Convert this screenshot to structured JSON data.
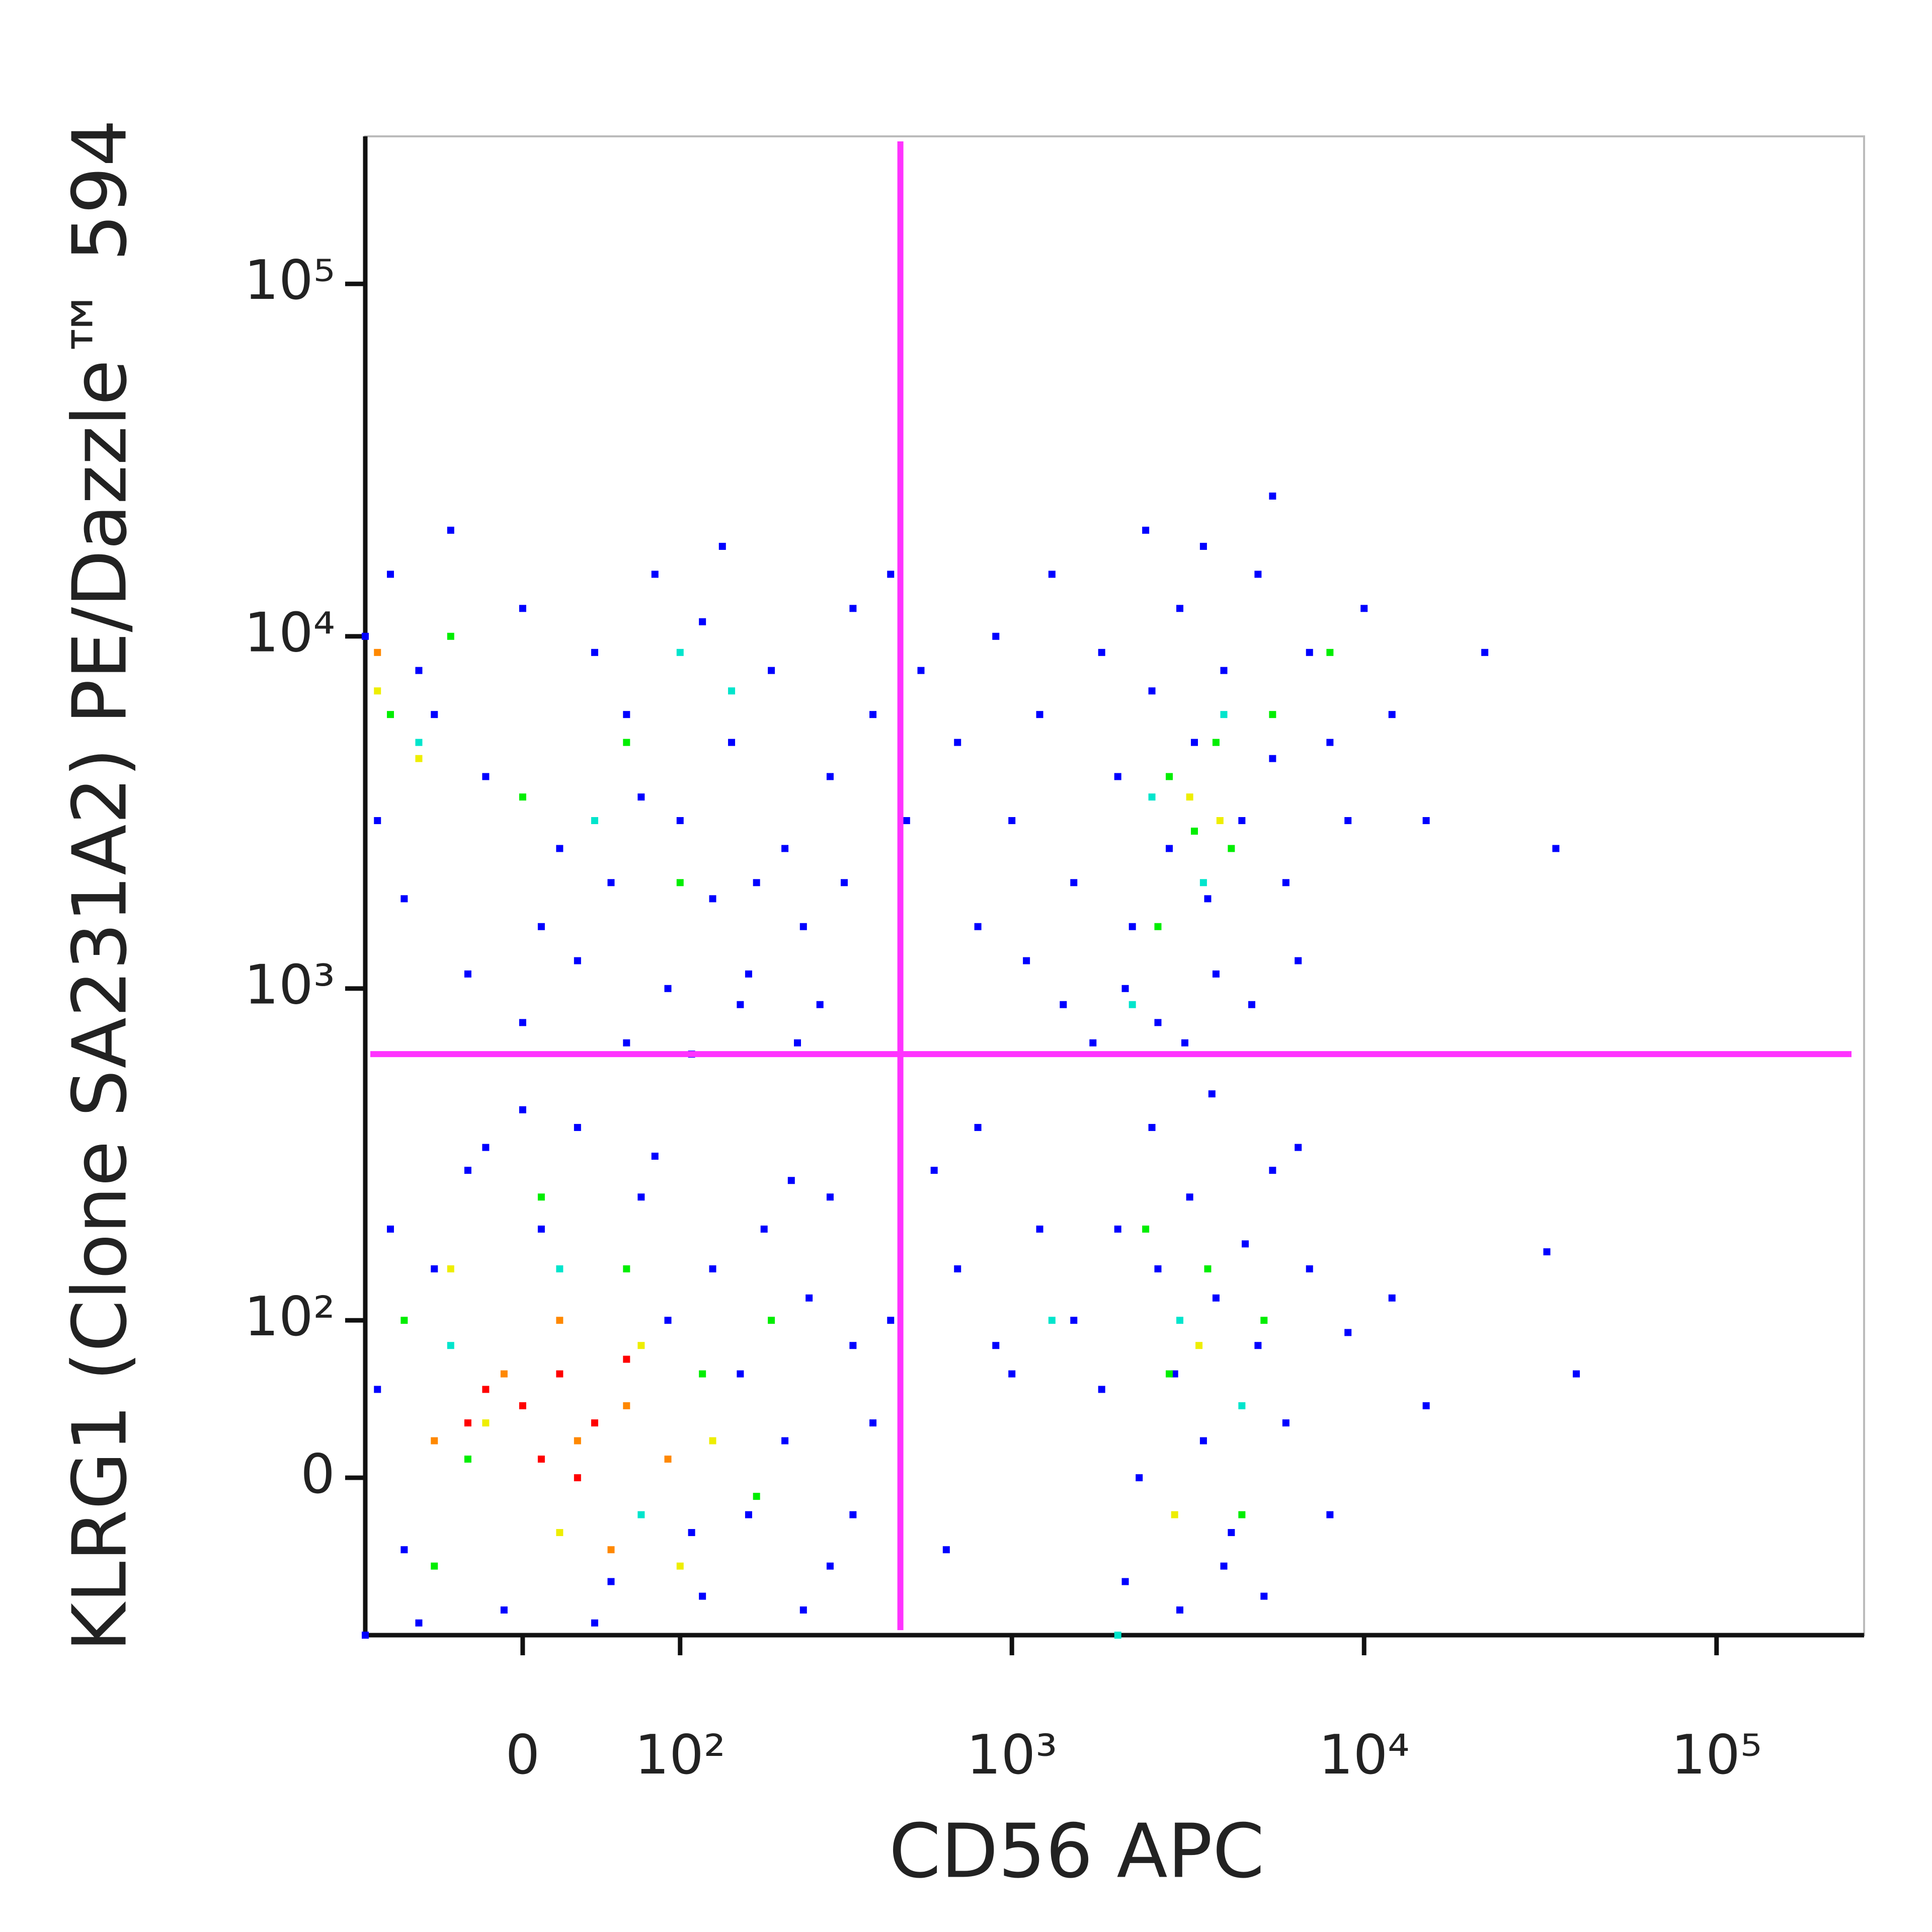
{
  "chart_data": {
    "type": "scatter",
    "x_label": "CD56 APC",
    "y_label": "KLRG1 (Clone SA231A2) PE/Dazzle™ 594",
    "xscale": "biexponential",
    "yscale": "biexponential",
    "xlim": [
      -100,
      262144
    ],
    "ylim": [
      -100,
      262144
    ],
    "xticks": [
      0,
      {
        "value": 100,
        "label": "10²"
      },
      {
        "value": 1000,
        "label": "10³"
      },
      {
        "value": 10000,
        "label": "10⁴"
      },
      {
        "value": 100000,
        "label": "10⁵"
      }
    ],
    "yticks": [
      0,
      {
        "value": 100,
        "label": "10²"
      },
      {
        "value": 1000,
        "label": "10³"
      },
      {
        "value": 10000,
        "label": "10⁴"
      },
      {
        "value": 100000,
        "label": "10⁵"
      }
    ],
    "quadrant_gate": {
      "x": 480,
      "y": 650,
      "color": "#ff33ff"
    },
    "series": [
      {
        "color": "#0000ff",
        "x": [
          -80,
          -60,
          -40,
          -20,
          0,
          20,
          40,
          60,
          80,
          100,
          120,
          150,
          180,
          200,
          250,
          300,
          350,
          -90,
          -70,
          -50,
          10,
          30,
          50,
          70,
          90,
          130,
          160,
          220,
          280,
          400,
          -30,
          0,
          60,
          110,
          170,
          240,
          330,
          450,
          140,
          -100,
          1000,
          1200,
          1500,
          1800,
          2000,
          2200,
          2500,
          2800,
          3000,
          3300,
          3600,
          4000,
          4500,
          5000,
          5500,
          6000,
          7000,
          8000,
          9000,
          10000,
          1100,
          1400,
          1700,
          2100,
          2600,
          3100,
          3800,
          4800,
          6500,
          900,
          1300,
          2400,
          3500,
          5500,
          12000,
          15000,
          700,
          800,
          22000,
          35000,
          1500,
          1800,
          2000,
          2300,
          2600,
          2900,
          3200,
          3500,
          3800,
          4200,
          4600,
          5000,
          5500,
          6000,
          7000,
          8000,
          9000,
          2100,
          3000,
          4000,
          5200,
          1200,
          1000,
          12000,
          15000,
          2500,
          3700,
          6500,
          33000,
          40000,
          -90,
          -70,
          -50,
          -30,
          -10,
          10,
          30,
          50,
          70,
          90,
          110,
          130,
          160,
          190,
          220,
          260,
          300,
          350,
          400,
          -80,
          -60,
          -20,
          0,
          40,
          80,
          120,
          170,
          230,
          300,
          -100,
          450,
          350,
          600,
          700,
          500,
          550,
          650,
          800,
          900,
          250
        ],
        "y": [
          15000,
          8000,
          20000,
          4000,
          12000,
          2500,
          9000,
          6000,
          15000,
          3000,
          11000,
          5000,
          2000,
          8000,
          1500,
          4000,
          12000,
          3000,
          1800,
          6000,
          1500,
          1200,
          2000,
          3500,
          1000,
          1800,
          900,
          2500,
          900,
          6000,
          1100,
          800,
          700,
          650,
          1100,
          700,
          2000,
          15000,
          18000,
          10000,
          3000,
          6000,
          2000,
          9000,
          4000,
          1500,
          7000,
          2500,
          12000,
          5000,
          1800,
          8000,
          3000,
          15000,
          4500,
          2000,
          9000,
          5000,
          3000,
          12000,
          1200,
          900,
          700,
          1000,
          800,
          700,
          1100,
          900,
          1200,
          10000,
          15000,
          20000,
          18000,
          25000,
          6000,
          3000,
          5000,
          1500,
          9000,
          2500,
          100,
          50,
          200,
          0,
          150,
          60,
          250,
          20,
          120,
          -30,
          180,
          80,
          300,
          30,
          150,
          -20,
          90,
          -60,
          -80,
          -50,
          -70,
          200,
          60,
          120,
          40,
          400,
          500,
          350,
          170,
          60,
          50,
          -40,
          150,
          300,
          -80,
          200,
          400,
          -60,
          250,
          100,
          -30,
          150,
          60,
          200,
          20,
          120,
          -50,
          80,
          30,
          200,
          -90,
          350,
          450,
          -90,
          330,
          -70,
          -20,
          280,
          250,
          -100,
          100,
          -20,
          300,
          150,
          3000,
          8000,
          -40,
          400,
          80,
          -80
        ]
      },
      {
        "color": "#00e5cc",
        "x": [
          -60,
          40,
          150,
          20,
          70,
          -40,
          2500,
          3500,
          4000,
          3000,
          4500,
          2200,
          100,
          1300,
          2000
        ],
        "y": [
          5000,
          3000,
          7000,
          150,
          -20,
          80,
          3500,
          2000,
          6000,
          100,
          40,
          900,
          9000,
          100,
          -100
        ]
      },
      {
        "color": "#00ee00",
        "x": [
          -80,
          -40,
          0,
          60,
          100,
          -70,
          -30,
          10,
          60,
          120,
          180,
          -50,
          2800,
          3300,
          3800,
          2600,
          4200,
          5500,
          8000,
          2800,
          3600,
          4500,
          2400,
          5200,
          200
        ],
        "y": [
          6000,
          10000,
          3500,
          5000,
          2000,
          100,
          10,
          250,
          150,
          60,
          -10,
          -50,
          4000,
          2800,
          5000,
          1500,
          2500,
          6000,
          9000,
          60,
          150,
          -20,
          200,
          100,
          100
        ]
      },
      {
        "color": "#eeee00",
        "x": [
          -90,
          -60,
          -20,
          20,
          70,
          130,
          -40,
          100,
          3200,
          3900,
          3400,
          2900
        ],
        "y": [
          7000,
          4500,
          30,
          -30,
          80,
          20,
          150,
          -50,
          3500,
          3000,
          80,
          -20
        ]
      },
      {
        "color": "#ff8800",
        "x": [
          -10,
          30,
          60,
          -50,
          90,
          20,
          -90,
          50
        ],
        "y": [
          60,
          20,
          40,
          20,
          10,
          100,
          9000,
          -40
        ]
      },
      {
        "color": "#ff0000",
        "x": [
          0,
          20,
          40,
          -20,
          10,
          60,
          30,
          -30
        ],
        "y": [
          40,
          60,
          30,
          50,
          10,
          70,
          0,
          30
        ]
      }
    ]
  }
}
